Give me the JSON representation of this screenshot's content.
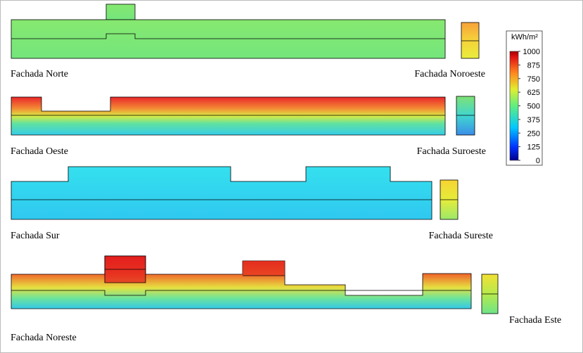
{
  "facades": [
    {
      "label": "Fachada Norte"
    },
    {
      "label": "Fachada Noroeste"
    },
    {
      "label": "Fachada Oeste"
    },
    {
      "label": "Fachada Suroeste"
    },
    {
      "label": "Fachada Sur"
    },
    {
      "label": "Fachada Sureste"
    },
    {
      "label": "Fachada Noreste"
    },
    {
      "label": "Fachada Este"
    }
  ],
  "colorbar": {
    "unit": "kWh/m²",
    "range": [
      0,
      1000
    ],
    "ticks": [
      1000,
      875,
      750,
      625,
      500,
      375,
      250,
      125,
      0
    ]
  }
}
